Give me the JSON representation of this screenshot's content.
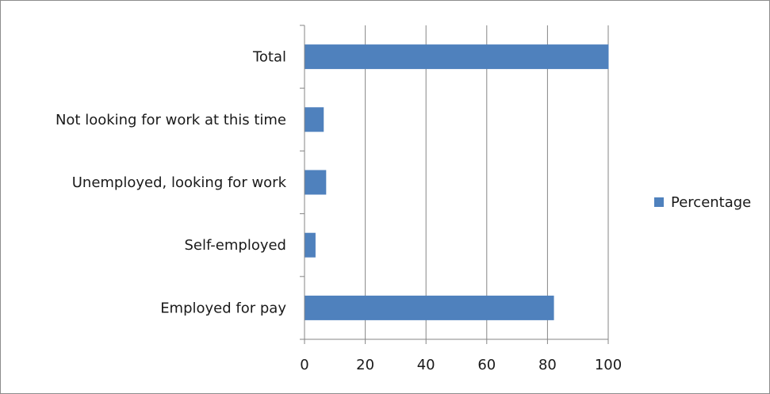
{
  "chart_data": {
    "type": "bar",
    "orientation": "horizontal",
    "categories": [
      "Employed for pay",
      "Self-employed",
      "Unemployed, looking for work",
      "Not looking for work at this time",
      "Total"
    ],
    "series": [
      {
        "name": "Percentage",
        "values": [
          82,
          3.5,
          7,
          6.2,
          100
        ]
      }
    ],
    "title": "",
    "xlabel": "",
    "ylabel": "",
    "xlim": [
      0,
      100
    ],
    "xticks": [
      "0",
      "20",
      "40",
      "60",
      "80",
      "100"
    ],
    "grid": "vertical gridlines",
    "legend": "right",
    "colors": {
      "bar": "#4f81bd",
      "grid": "#868686",
      "axis": "#868686"
    }
  }
}
